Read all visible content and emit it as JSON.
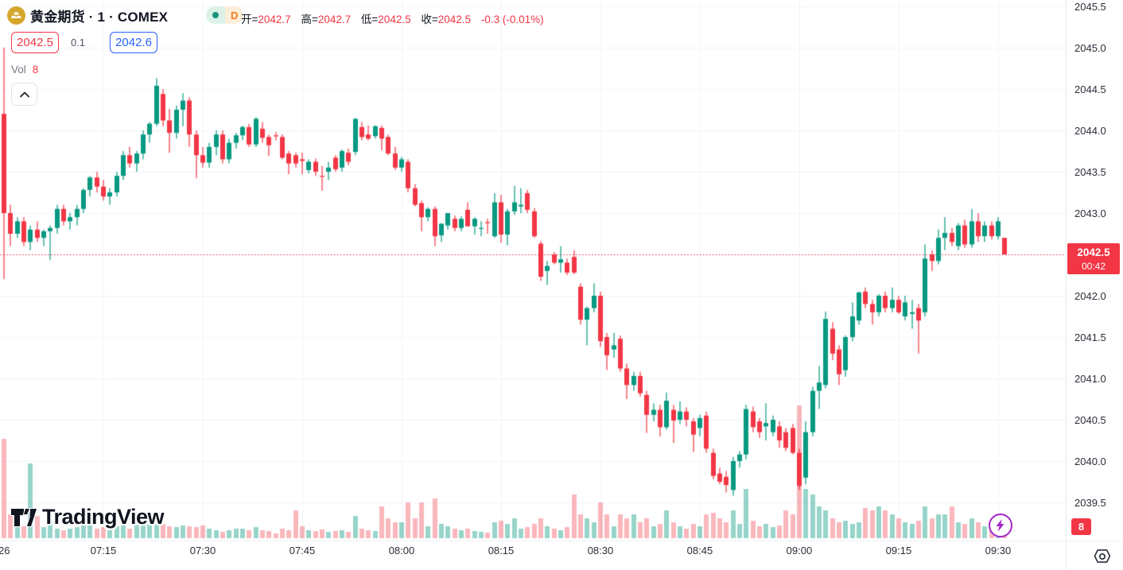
{
  "header": {
    "symbol_title": "黄金期货 · 1 · COMEX",
    "interval_badge": "D",
    "ohlc": {
      "open_label": "开=",
      "open": "2042.7",
      "high_label": "高=",
      "high": "2042.7",
      "low_label": "低=",
      "low": "2042.5",
      "close_label": "收=",
      "close": "2042.5",
      "change": "-0.3 (-0.01%)"
    },
    "bid": "2042.5",
    "spread": "0.1",
    "ask": "2042.6"
  },
  "volume_indicator": {
    "label": "Vol",
    "value": "8"
  },
  "watermark": {
    "brand": "TradingView"
  },
  "price_axis": {
    "ticks": [
      "2045.5",
      "2045.0",
      "2044.5",
      "2044.0",
      "2043.5",
      "2043.0",
      "2042.5",
      "2042.0",
      "2041.5",
      "2041.0",
      "2040.5",
      "2040.0",
      "2039.5"
    ],
    "current_price": "2042.5",
    "countdown": "00:42",
    "current_volume_badge": "8"
  },
  "time_axis": {
    "date_label": "26",
    "ticks": [
      "07:15",
      "07:30",
      "07:45",
      "08:00",
      "08:15",
      "08:30",
      "08:45",
      "09:00",
      "09:15",
      "09:30"
    ]
  },
  "colors": {
    "up": "#089981",
    "down": "#f23645",
    "vol_up": "rgba(8,153,129,0.42)",
    "vol_down": "rgba(242,84,95,0.42)",
    "grid": "#f0f3fa",
    "accent_blue": "#2962ff",
    "accent_red": "#f23645",
    "badge_purple": "#a226c6",
    "symbol_gold": "#d5a62b"
  },
  "chart_data": {
    "type": "candlestick",
    "symbol": "黄金期货 COMEX",
    "interval": "1 minute",
    "price_range": [
      2039.5,
      2045.5
    ],
    "time_range": [
      "07:00",
      "09:31"
    ],
    "legend": "open/high/low/close per bar, v = relative volume",
    "candles": [
      [
        "07:00",
        2044.2,
        2045.0,
        2042.2,
        2043.0,
        125
      ],
      [
        "07:01",
        2043.0,
        2043.1,
        2042.6,
        2042.75,
        30
      ],
      [
        "07:02",
        2042.75,
        2042.95,
        2042.7,
        2042.9,
        18
      ],
      [
        "07:03",
        2042.9,
        2042.95,
        2042.6,
        2042.65,
        15
      ],
      [
        "07:04",
        2042.65,
        2042.85,
        2042.55,
        2042.8,
        94
      ],
      [
        "07:05",
        2042.8,
        2042.9,
        2042.65,
        2042.7,
        28
      ],
      [
        "07:06",
        2042.7,
        2042.8,
        2042.6,
        2042.78,
        14
      ],
      [
        "07:07",
        2042.78,
        2042.85,
        2042.43,
        2042.82,
        22
      ],
      [
        "07:08",
        2042.82,
        2043.1,
        2042.75,
        2043.05,
        12
      ],
      [
        "07:09",
        2043.05,
        2043.1,
        2042.85,
        2042.9,
        10
      ],
      [
        "07:10",
        2042.9,
        2043.0,
        2042.8,
        2042.95,
        12
      ],
      [
        "07:11",
        2042.95,
        2043.1,
        2042.85,
        2043.05,
        14
      ],
      [
        "07:12",
        2043.05,
        2043.3,
        2043.0,
        2043.28,
        16
      ],
      [
        "07:13",
        2043.28,
        2043.45,
        2043.2,
        2043.43,
        18
      ],
      [
        "07:14",
        2043.43,
        2043.5,
        2043.25,
        2043.32,
        12
      ],
      [
        "07:15",
        2043.32,
        2043.4,
        2043.15,
        2043.2,
        14
      ],
      [
        "07:16",
        2043.2,
        2043.3,
        2043.1,
        2043.25,
        10
      ],
      [
        "07:17",
        2043.25,
        2043.5,
        2043.2,
        2043.45,
        15
      ],
      [
        "07:18",
        2043.45,
        2043.75,
        2043.4,
        2043.7,
        20
      ],
      [
        "07:19",
        2043.7,
        2043.8,
        2043.55,
        2043.6,
        12
      ],
      [
        "07:20",
        2043.6,
        2043.75,
        2043.5,
        2043.72,
        25
      ],
      [
        "07:21",
        2043.72,
        2044.0,
        2043.65,
        2043.95,
        22
      ],
      [
        "07:22",
        2043.95,
        2044.1,
        2043.85,
        2044.08,
        20
      ],
      [
        "07:23",
        2044.08,
        2044.63,
        2044.05,
        2044.54,
        30
      ],
      [
        "07:24",
        2044.44,
        2044.5,
        2044.05,
        2044.12,
        18
      ],
      [
        "07:25",
        2044.12,
        2044.26,
        2043.73,
        2043.97,
        15
      ],
      [
        "07:26",
        2043.97,
        2044.3,
        2043.9,
        2044.25,
        14
      ],
      [
        "07:27",
        2044.25,
        2044.45,
        2044.05,
        2044.36,
        16
      ],
      [
        "07:28",
        2044.36,
        2044.4,
        2043.8,
        2043.95,
        15
      ],
      [
        "07:29",
        2043.95,
        2044.0,
        2043.42,
        2043.7,
        14
      ],
      [
        "07:30",
        2043.7,
        2043.8,
        2043.55,
        2043.61,
        16
      ],
      [
        "07:31",
        2043.61,
        2043.85,
        2043.55,
        2043.8,
        12
      ],
      [
        "07:32",
        2043.8,
        2044.0,
        2043.7,
        2043.95,
        10
      ],
      [
        "07:33",
        2043.95,
        2044.0,
        2043.6,
        2043.65,
        8
      ],
      [
        "07:34",
        2043.65,
        2043.9,
        2043.6,
        2043.85,
        10
      ],
      [
        "07:35",
        2043.85,
        2043.97,
        2043.78,
        2043.94,
        12
      ],
      [
        "07:36",
        2043.94,
        2044.06,
        2043.88,
        2044.04,
        12
      ],
      [
        "07:37",
        2044.04,
        2044.08,
        2043.8,
        2043.83,
        10
      ],
      [
        "07:38",
        2043.83,
        2044.16,
        2043.8,
        2044.14,
        14
      ],
      [
        "07:39",
        2044.02,
        2044.1,
        2043.85,
        2043.91,
        10
      ],
      [
        "07:40",
        2043.92,
        2043.95,
        2043.69,
        2043.82,
        9
      ],
      [
        "07:41",
        2043.94,
        2043.98,
        2043.88,
        2043.93,
        6
      ],
      [
        "07:42",
        2043.92,
        2043.95,
        2043.65,
        2043.67,
        12
      ],
      [
        "07:43",
        2043.72,
        2043.75,
        2043.47,
        2043.6,
        10
      ],
      [
        "07:44",
        2043.7,
        2043.73,
        2043.55,
        2043.6,
        35
      ],
      [
        "07:45",
        2043.65,
        2043.73,
        2043.47,
        2043.63,
        15
      ],
      [
        "07:46",
        2043.52,
        2043.65,
        2043.48,
        2043.62,
        10
      ],
      [
        "07:47",
        2043.62,
        2043.66,
        2043.45,
        2043.5,
        9
      ],
      [
        "07:48",
        2043.45,
        2043.57,
        2043.27,
        2043.44,
        11
      ],
      [
        "07:49",
        2043.5,
        2043.62,
        2043.4,
        2043.55,
        8
      ],
      [
        "07:50",
        2043.67,
        2043.7,
        2043.5,
        2043.53,
        9
      ],
      [
        "07:51",
        2043.55,
        2043.77,
        2043.5,
        2043.75,
        10
      ],
      [
        "07:52",
        2043.73,
        2043.78,
        2043.58,
        2043.62,
        8
      ],
      [
        "07:53",
        2043.74,
        2044.15,
        2043.7,
        2044.14,
        28
      ],
      [
        "07:54",
        2044.04,
        2044.1,
        2043.88,
        2043.92,
        12
      ],
      [
        "07:55",
        2043.95,
        2044.06,
        2043.88,
        2043.9,
        10
      ],
      [
        "07:56",
        2043.93,
        2044.06,
        2043.9,
        2044.05,
        9
      ],
      [
        "07:57",
        2044.03,
        2044.06,
        2043.76,
        2043.9,
        40
      ],
      [
        "07:58",
        2043.92,
        2043.95,
        2043.7,
        2043.72,
        25
      ],
      [
        "07:59",
        2043.72,
        2043.8,
        2043.52,
        2043.55,
        20
      ],
      [
        "08:00",
        2043.55,
        2043.68,
        2043.5,
        2043.65,
        20
      ],
      [
        "08:01",
        2043.62,
        2043.65,
        2043.25,
        2043.3,
        45
      ],
      [
        "08:02",
        2043.3,
        2043.35,
        2043.08,
        2043.1,
        25
      ],
      [
        "08:03",
        2043.12,
        2043.15,
        2042.78,
        2042.95,
        45
      ],
      [
        "08:04",
        2042.95,
        2043.07,
        2042.9,
        2043.05,
        15
      ],
      [
        "08:05",
        2043.05,
        2043.08,
        2042.6,
        2042.72,
        50
      ],
      [
        "08:06",
        2042.73,
        2042.88,
        2042.65,
        2042.87,
        18
      ],
      [
        "08:07",
        2042.85,
        2043.0,
        2042.8,
        2043.0,
        15
      ],
      [
        "08:08",
        2042.93,
        2042.97,
        2042.78,
        2042.82,
        12
      ],
      [
        "08:09",
        2042.82,
        2042.96,
        2042.78,
        2042.93,
        10
      ],
      [
        "08:10",
        2043.04,
        2043.13,
        2042.84,
        2042.84,
        12
      ],
      [
        "08:11",
        2042.84,
        2042.95,
        2042.74,
        2042.93,
        9
      ],
      [
        "08:12",
        2042.82,
        2042.9,
        2042.72,
        2042.82,
        8
      ],
      [
        "08:13",
        2042.89,
        2042.93,
        2042.75,
        2042.88,
        7
      ],
      [
        "08:14",
        2042.72,
        2043.24,
        2042.7,
        2043.13,
        20
      ],
      [
        "08:15",
        2043.13,
        2043.22,
        2042.64,
        2042.74,
        22
      ],
      [
        "08:16",
        2042.74,
        2043.05,
        2042.61,
        2043.02,
        18
      ],
      [
        "08:17",
        2043.02,
        2043.33,
        2042.98,
        2043.13,
        25
      ],
      [
        "08:18",
        2043.08,
        2043.3,
        2043.0,
        2043.1,
        12
      ],
      [
        "08:19",
        2043.24,
        2043.28,
        2043.0,
        2043.04,
        14
      ],
      [
        "08:20",
        2043.02,
        2043.06,
        2042.7,
        2042.72,
        18
      ],
      [
        "08:21",
        2042.63,
        2042.66,
        2042.18,
        2042.23,
        25
      ],
      [
        "08:22",
        2042.3,
        2042.42,
        2042.13,
        2042.36,
        15
      ],
      [
        "08:23",
        2042.5,
        2042.53,
        2042.38,
        2042.4,
        12
      ],
      [
        "08:24",
        2042.4,
        2042.6,
        2042.28,
        2042.44,
        10
      ],
      [
        "08:25",
        2042.4,
        2042.45,
        2042.25,
        2042.28,
        14
      ],
      [
        "08:26",
        2042.47,
        2042.55,
        2042.26,
        2042.28,
        55
      ],
      [
        "08:27",
        2042.11,
        2042.15,
        2041.65,
        2041.71,
        30
      ],
      [
        "08:28",
        2041.71,
        2041.87,
        2041.4,
        2041.85,
        25
      ],
      [
        "08:29",
        2041.85,
        2042.15,
        2041.8,
        2042.0,
        20
      ],
      [
        "08:30",
        2042.0,
        2042.05,
        2041.38,
        2041.45,
        45
      ],
      [
        "08:31",
        2041.5,
        2041.55,
        2041.1,
        2041.28,
        30
      ],
      [
        "08:32",
        2041.35,
        2041.55,
        2041.25,
        2041.4,
        15
      ],
      [
        "08:33",
        2041.48,
        2041.52,
        2041.08,
        2041.12,
        30
      ],
      [
        "08:34",
        2041.12,
        2041.18,
        2040.75,
        2040.92,
        25
      ],
      [
        "08:35",
        2040.92,
        2041.08,
        2040.85,
        2041.03,
        30
      ],
      [
        "08:36",
        2041.03,
        2041.08,
        2040.78,
        2040.82,
        20
      ],
      [
        "08:37",
        2040.8,
        2040.85,
        2040.34,
        2040.56,
        25
      ],
      [
        "08:38",
        2040.56,
        2040.7,
        2040.48,
        2040.62,
        15
      ],
      [
        "08:39",
        2040.62,
        2040.68,
        2040.3,
        2040.41,
        18
      ],
      [
        "08:40",
        2040.41,
        2040.83,
        2040.38,
        2040.73,
        35
      ],
      [
        "08:41",
        2040.62,
        2040.68,
        2040.22,
        2040.49,
        20
      ],
      [
        "08:42",
        2040.5,
        2040.72,
        2040.45,
        2040.6,
        15
      ],
      [
        "08:43",
        2040.6,
        2040.65,
        2040.42,
        2040.5,
        12
      ],
      [
        "08:44",
        2040.48,
        2040.52,
        2040.11,
        2040.32,
        18
      ],
      [
        "08:45",
        2040.4,
        2040.56,
        2040.3,
        2040.52,
        15
      ],
      [
        "08:46",
        2040.55,
        2040.6,
        2040.1,
        2040.15,
        30
      ],
      [
        "08:47",
        2040.1,
        2040.15,
        2039.78,
        2039.82,
        32
      ],
      [
        "08:48",
        2039.85,
        2039.92,
        2039.72,
        2039.75,
        25
      ],
      [
        "08:49",
        2039.81,
        2039.88,
        2039.62,
        2039.71,
        20
      ],
      [
        "08:50",
        2039.65,
        2040.05,
        2039.58,
        2040.0,
        35
      ],
      [
        "08:51",
        2040.0,
        2040.12,
        2039.92,
        2040.08,
        18
      ],
      [
        "08:52",
        2040.08,
        2040.68,
        2040.02,
        2040.63,
        62
      ],
      [
        "08:53",
        2040.6,
        2040.66,
        2040.35,
        2040.41,
        22
      ],
      [
        "08:54",
        2040.48,
        2040.52,
        2040.28,
        2040.35,
        15
      ],
      [
        "08:55",
        2040.42,
        2040.7,
        2040.25,
        2040.46,
        18
      ],
      [
        "08:56",
        2040.35,
        2040.55,
        2040.3,
        2040.5,
        14
      ],
      [
        "08:57",
        2040.42,
        2040.48,
        2040.16,
        2040.25,
        16
      ],
      [
        "08:58",
        2040.35,
        2040.4,
        2040.12,
        2040.16,
        35
      ],
      [
        "08:59",
        2040.4,
        2040.45,
        2040.08,
        2040.1,
        30
      ],
      [
        "09:00",
        2040.1,
        2040.15,
        2039.65,
        2039.7,
        167
      ],
      [
        "09:01",
        2039.8,
        2040.48,
        2039.72,
        2040.35,
        62
      ],
      [
        "09:02",
        2040.35,
        2040.9,
        2040.3,
        2040.85,
        55
      ],
      [
        "09:03",
        2040.85,
        2041.15,
        2040.63,
        2040.95,
        40
      ],
      [
        "09:04",
        2040.92,
        2041.81,
        2040.88,
        2041.72,
        35
      ],
      [
        "09:05",
        2041.6,
        2041.68,
        2041.22,
        2041.3,
        25
      ],
      [
        "09:06",
        2041.35,
        2041.4,
        2040.92,
        2041.05,
        20
      ],
      [
        "09:07",
        2041.1,
        2041.52,
        2041.02,
        2041.5,
        22
      ],
      [
        "09:08",
        2041.5,
        2041.92,
        2041.45,
        2041.75,
        18
      ],
      [
        "09:09",
        2041.7,
        2042.05,
        2041.65,
        2042.04,
        20
      ],
      [
        "09:10",
        2042.05,
        2042.1,
        2041.85,
        2041.9,
        38
      ],
      [
        "09:11",
        2041.9,
        2041.95,
        2041.65,
        2041.8,
        35
      ],
      [
        "09:12",
        2041.8,
        2042.02,
        2041.75,
        2042.0,
        40
      ],
      [
        "09:13",
        2042.0,
        2042.05,
        2041.8,
        2041.85,
        35
      ],
      [
        "09:14",
        2041.85,
        2042.1,
        2041.8,
        2041.95,
        30
      ],
      [
        "09:15",
        2041.95,
        2042.0,
        2041.78,
        2041.8,
        25
      ],
      [
        "09:16",
        2041.75,
        2042.0,
        2041.7,
        2041.92,
        20
      ],
      [
        "09:17",
        2041.78,
        2041.95,
        2041.6,
        2041.8,
        18
      ],
      [
        "09:18",
        2041.85,
        2041.9,
        2041.3,
        2041.7,
        22
      ],
      [
        "09:19",
        2041.8,
        2042.62,
        2041.75,
        2042.45,
        40
      ],
      [
        "09:20",
        2042.5,
        2042.55,
        2042.3,
        2042.42,
        25
      ],
      [
        "09:21",
        2042.42,
        2042.8,
        2042.38,
        2042.7,
        30
      ],
      [
        "09:22",
        2042.7,
        2042.95,
        2042.55,
        2042.76,
        30
      ],
      [
        "09:23",
        2042.76,
        2042.82,
        2042.6,
        2042.65,
        40
      ],
      [
        "09:24",
        2042.6,
        2042.88,
        2042.55,
        2042.85,
        20
      ],
      [
        "09:25",
        2042.85,
        2042.92,
        2042.58,
        2042.62,
        18
      ],
      [
        "09:26",
        2042.62,
        2043.05,
        2042.58,
        2042.9,
        25
      ],
      [
        "09:27",
        2042.9,
        2043.0,
        2042.65,
        2042.72,
        20
      ],
      [
        "09:28",
        2042.72,
        2042.9,
        2042.65,
        2042.85,
        15
      ],
      [
        "09:29",
        2042.85,
        2042.9,
        2042.68,
        2042.72,
        12
      ],
      [
        "09:30",
        2042.72,
        2042.95,
        2042.68,
        2042.9,
        15
      ],
      [
        "09:31",
        2042.7,
        2042.7,
        2042.5,
        2042.5,
        6
      ]
    ]
  }
}
